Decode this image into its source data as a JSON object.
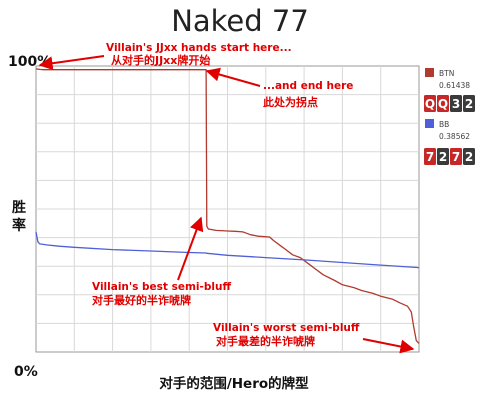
{
  "chart_data": {
    "type": "line",
    "title": "Naked 77",
    "xlabel": "对手的范围/Hero的牌型",
    "ylabel": "胜率",
    "ylim": [
      0,
      100
    ],
    "y_tick_labels": [
      "100%",
      "0%"
    ],
    "grid": true,
    "legend_position": "right",
    "series": [
      {
        "name": "BTN",
        "equity": "0.61438",
        "color": "#b03a2e",
        "cards": [
          "Q",
          "Q",
          "3",
          "2"
        ],
        "card_colors": [
          "#c62828",
          "#c62828",
          "#3a3a3a",
          "#3a3a3a"
        ],
        "x": [
          0,
          1,
          2,
          44.4,
          44.6,
          45,
          47,
          50,
          52,
          54,
          55,
          56,
          58,
          61,
          62,
          64,
          65,
          67,
          69,
          71,
          73,
          75,
          78,
          80,
          83,
          85,
          88,
          90,
          93,
          95,
          97,
          98,
          98.6,
          99,
          99.3,
          100
        ],
        "y": [
          99,
          98.8,
          98.7,
          98.7,
          44,
          43,
          42.5,
          42.3,
          42.2,
          42,
          41.5,
          41,
          40.5,
          40.2,
          39,
          37,
          36,
          34,
          33,
          31,
          29,
          27,
          25,
          23.5,
          22.5,
          21.5,
          20.5,
          19.5,
          18.5,
          17.2,
          16,
          14,
          9,
          6,
          4,
          3
        ]
      },
      {
        "name": "BB",
        "equity": "0.38562",
        "color": "#4f5fd6",
        "cards": [
          "7",
          "2",
          "7",
          "2"
        ],
        "card_colors": [
          "#c62828",
          "#3a3a3a",
          "#c62828",
          "#3a3a3a"
        ],
        "x": [
          0,
          0.5,
          1,
          3,
          6,
          10,
          20,
          30,
          40,
          44.4,
          44.6,
          50,
          60,
          70,
          80,
          90,
          100
        ],
        "y": [
          42,
          38.5,
          37.8,
          37.4,
          37,
          36.6,
          35.8,
          35.3,
          34.8,
          34.6,
          34.5,
          33.8,
          33,
          32.2,
          31.3,
          30.4,
          29.5
        ]
      }
    ],
    "annotations": [
      {
        "en": "Villain's JJxx hands start here...",
        "cn": "从对手的JJxx牌开始"
      },
      {
        "en": "...and end here",
        "cn": "此处为拐点"
      },
      {
        "en": "Villain's best semi-bluff",
        "cn": "对手最好的半诈唬牌"
      },
      {
        "en": "Villain's worst semi-bluff",
        "cn": "对手最差的半诈唬牌"
      }
    ]
  }
}
